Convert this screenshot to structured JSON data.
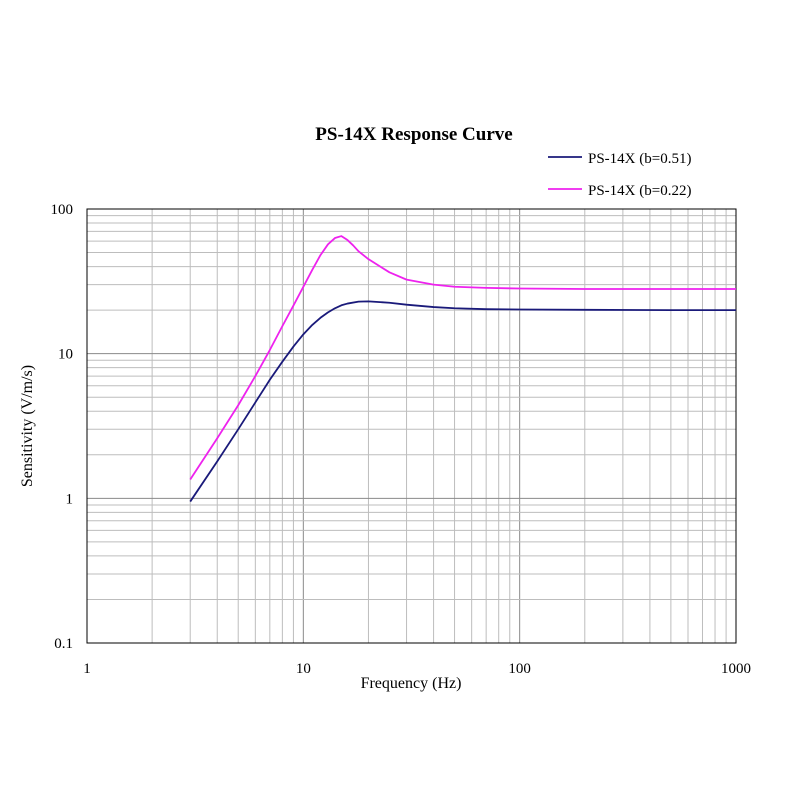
{
  "chart_data": {
    "type": "line",
    "title": "PS-14X Response Curve",
    "xlabel": "Frequency (Hz)",
    "ylabel": "Sensitivity (V/m/s)",
    "x_scale": "log",
    "y_scale": "log",
    "xlim": [
      1,
      1000
    ],
    "ylim": [
      0.1,
      100
    ],
    "x_ticks": [
      1,
      10,
      100,
      1000
    ],
    "x_tick_labels": [
      "1",
      "10",
      "100",
      "1000"
    ],
    "y_ticks": [
      0.1,
      1,
      10,
      100
    ],
    "y_tick_labels": [
      "0.1",
      "1",
      "10",
      "100"
    ],
    "grid": true,
    "legend_position": "top-right",
    "series": [
      {
        "name": "PS-14X (b=0.51)",
        "color": "#1a1a7a",
        "points": [
          [
            3,
            0.95
          ],
          [
            4,
            1.8
          ],
          [
            5,
            3.0
          ],
          [
            6,
            4.6
          ],
          [
            7,
            6.6
          ],
          [
            8,
            8.8
          ],
          [
            9,
            11.2
          ],
          [
            10,
            13.6
          ],
          [
            11,
            15.8
          ],
          [
            12,
            17.7
          ],
          [
            13,
            19.3
          ],
          [
            14,
            20.6
          ],
          [
            15,
            21.6
          ],
          [
            16,
            22.2
          ],
          [
            18,
            22.9
          ],
          [
            20,
            23.0
          ],
          [
            25,
            22.5
          ],
          [
            30,
            21.8
          ],
          [
            40,
            21.0
          ],
          [
            50,
            20.6
          ],
          [
            70,
            20.3
          ],
          [
            100,
            20.2
          ],
          [
            200,
            20.1
          ],
          [
            500,
            20.0
          ],
          [
            1000,
            20.0
          ]
        ]
      },
      {
        "name": "PS-14X (b=0.22)",
        "color": "#ee22ee",
        "points": [
          [
            3,
            1.35
          ],
          [
            4,
            2.6
          ],
          [
            5,
            4.4
          ],
          [
            6,
            7.0
          ],
          [
            7,
            10.6
          ],
          [
            8,
            15.5
          ],
          [
            9,
            21.5
          ],
          [
            10,
            29.0
          ],
          [
            11,
            38.0
          ],
          [
            12,
            48.0
          ],
          [
            13,
            57.0
          ],
          [
            14,
            63.0
          ],
          [
            15,
            65.0
          ],
          [
            16,
            61.0
          ],
          [
            17,
            56.0
          ],
          [
            18,
            51.0
          ],
          [
            20,
            45.0
          ],
          [
            25,
            36.5
          ],
          [
            30,
            32.5
          ],
          [
            40,
            30.0
          ],
          [
            50,
            29.0
          ],
          [
            70,
            28.5
          ],
          [
            100,
            28.2
          ],
          [
            200,
            28.0
          ],
          [
            500,
            28.0
          ],
          [
            1000,
            28.0
          ]
        ]
      }
    ]
  }
}
